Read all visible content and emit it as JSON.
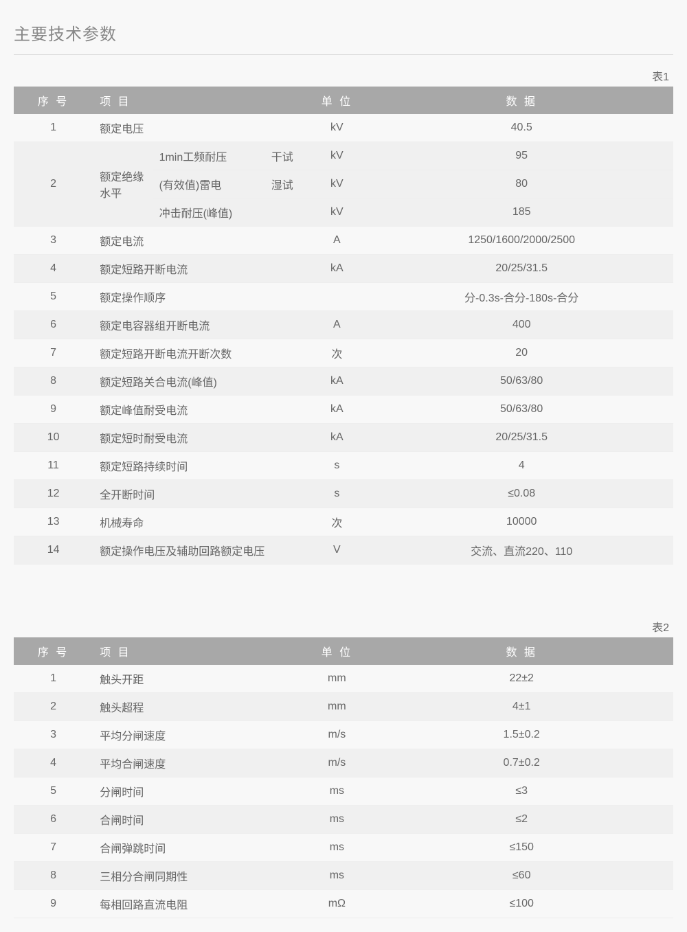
{
  "page_title": "主要技术参数",
  "table1": {
    "label": "表1",
    "headers": {
      "seq": "序 号",
      "item": "项 目",
      "unit": "单 位",
      "data": "数 据"
    },
    "row1": {
      "seq": "1",
      "item": "额定电压",
      "unit": "kV",
      "data": "40.5"
    },
    "row2": {
      "seq": "2",
      "label": "额定绝缘水平",
      "a": {
        "sub": "1min工频耐压",
        "cond": "干试",
        "unit": "kV",
        "data": "95"
      },
      "b": {
        "sub": "(有效值)雷电",
        "cond": "湿试",
        "unit": "kV",
        "data": "80"
      },
      "c": {
        "sub": "冲击耐压(峰值)",
        "cond": "",
        "unit": "kV",
        "data": "185"
      }
    },
    "row3": {
      "seq": "3",
      "item": "额定电流",
      "unit": "A",
      "data": "1250/1600/2000/2500"
    },
    "row4": {
      "seq": "4",
      "item": "额定短路开断电流",
      "unit": "kA",
      "data": "20/25/31.5"
    },
    "row5": {
      "seq": "5",
      "item": "额定操作顺序",
      "unit": "",
      "data": "分-0.3s-合分-180s-合分"
    },
    "row6": {
      "seq": "6",
      "item": "额定电容器组开断电流",
      "unit": "A",
      "data": "400"
    },
    "row7": {
      "seq": "7",
      "item": "额定短路开断电流开断次数",
      "unit": "次",
      "data": "20"
    },
    "row8": {
      "seq": "8",
      "item": "额定短路关合电流(峰值)",
      "unit": "kA",
      "data": "50/63/80"
    },
    "row9": {
      "seq": "9",
      "item": "额定峰值耐受电流",
      "unit": "kA",
      "data": "50/63/80"
    },
    "row10": {
      "seq": "10",
      "item": "额定短时耐受电流",
      "unit": "kA",
      "data": "20/25/31.5"
    },
    "row11": {
      "seq": "11",
      "item": "额定短路持续时间",
      "unit": "s",
      "data": "4"
    },
    "row12": {
      "seq": "12",
      "item": "全开断时间",
      "unit": "s",
      "data": "≤0.08"
    },
    "row13": {
      "seq": "13",
      "item": "机械寿命",
      "unit": "次",
      "data": "10000"
    },
    "row14": {
      "seq": "14",
      "item": "额定操作电压及辅助回路额定电压",
      "unit": "V",
      "data": "交流、直流220、110"
    }
  },
  "table2": {
    "label": "表2",
    "headers": {
      "seq": "序 号",
      "item": "项 目",
      "unit": "单 位",
      "data": "数 据"
    },
    "rows": [
      {
        "seq": "1",
        "item": "触头开距",
        "unit": "mm",
        "data": "22±2"
      },
      {
        "seq": "2",
        "item": "触头超程",
        "unit": "mm",
        "data": "4±1"
      },
      {
        "seq": "3",
        "item": "平均分闸速度",
        "unit": "m/s",
        "data": "1.5±0.2"
      },
      {
        "seq": "4",
        "item": "平均合闸速度",
        "unit": "m/s",
        "data": "0.7±0.2"
      },
      {
        "seq": "5",
        "item": "分闸时间",
        "unit": "ms",
        "data": "≤3"
      },
      {
        "seq": "6",
        "item": "合闸时间",
        "unit": "ms",
        "data": "≤2"
      },
      {
        "seq": "7",
        "item": "合闸弹跳时间",
        "unit": "ms",
        "data": "≤150"
      },
      {
        "seq": "8",
        "item": "三相分合闸同期性",
        "unit": "ms",
        "data": "≤60"
      },
      {
        "seq": "9",
        "item": "每相回路直流电阻",
        "unit": "mΩ",
        "data": "≤100"
      }
    ]
  },
  "style": {
    "header_bg": "#a8a8a8",
    "header_fg": "#ffffff",
    "text_color": "#666666",
    "stripe_bg": "#f0f0f0",
    "plain_bg": "#f8f8f8",
    "font_size_title": 24,
    "font_size_body": 16
  }
}
